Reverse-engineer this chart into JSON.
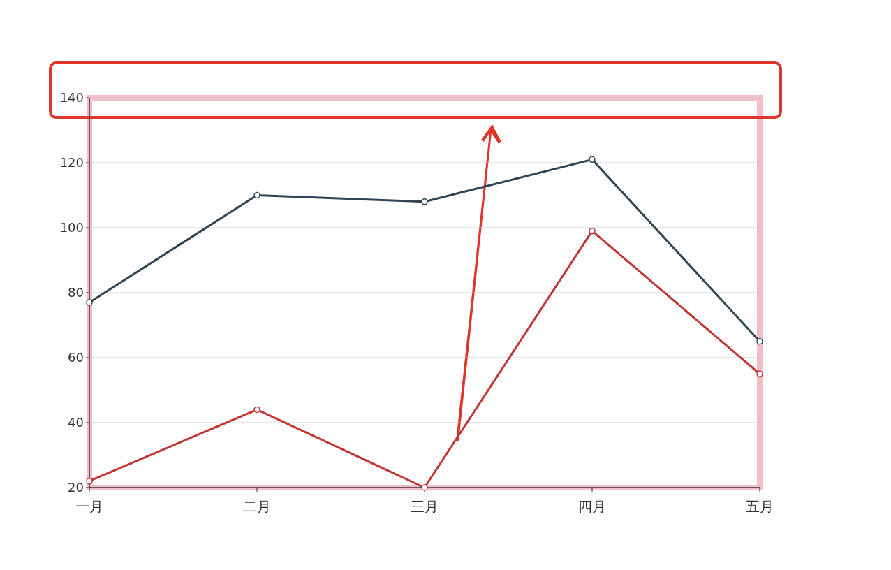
{
  "chart_data": {
    "type": "line",
    "categories": [
      "一月",
      "二月",
      "三月",
      "四月",
      "五月"
    ],
    "series": [
      {
        "color": "#2f4554",
        "values": [
          77,
          110,
          108,
          121,
          65
        ]
      },
      {
        "color": "#c23531",
        "values": [
          22,
          44,
          20,
          99,
          55
        ]
      }
    ],
    "ylim": [
      20,
      140
    ],
    "yticks": [
      20,
      40,
      60,
      80,
      100,
      120,
      140
    ],
    "grid": "y",
    "marker": "circle",
    "line_style": "solid"
  }
}
